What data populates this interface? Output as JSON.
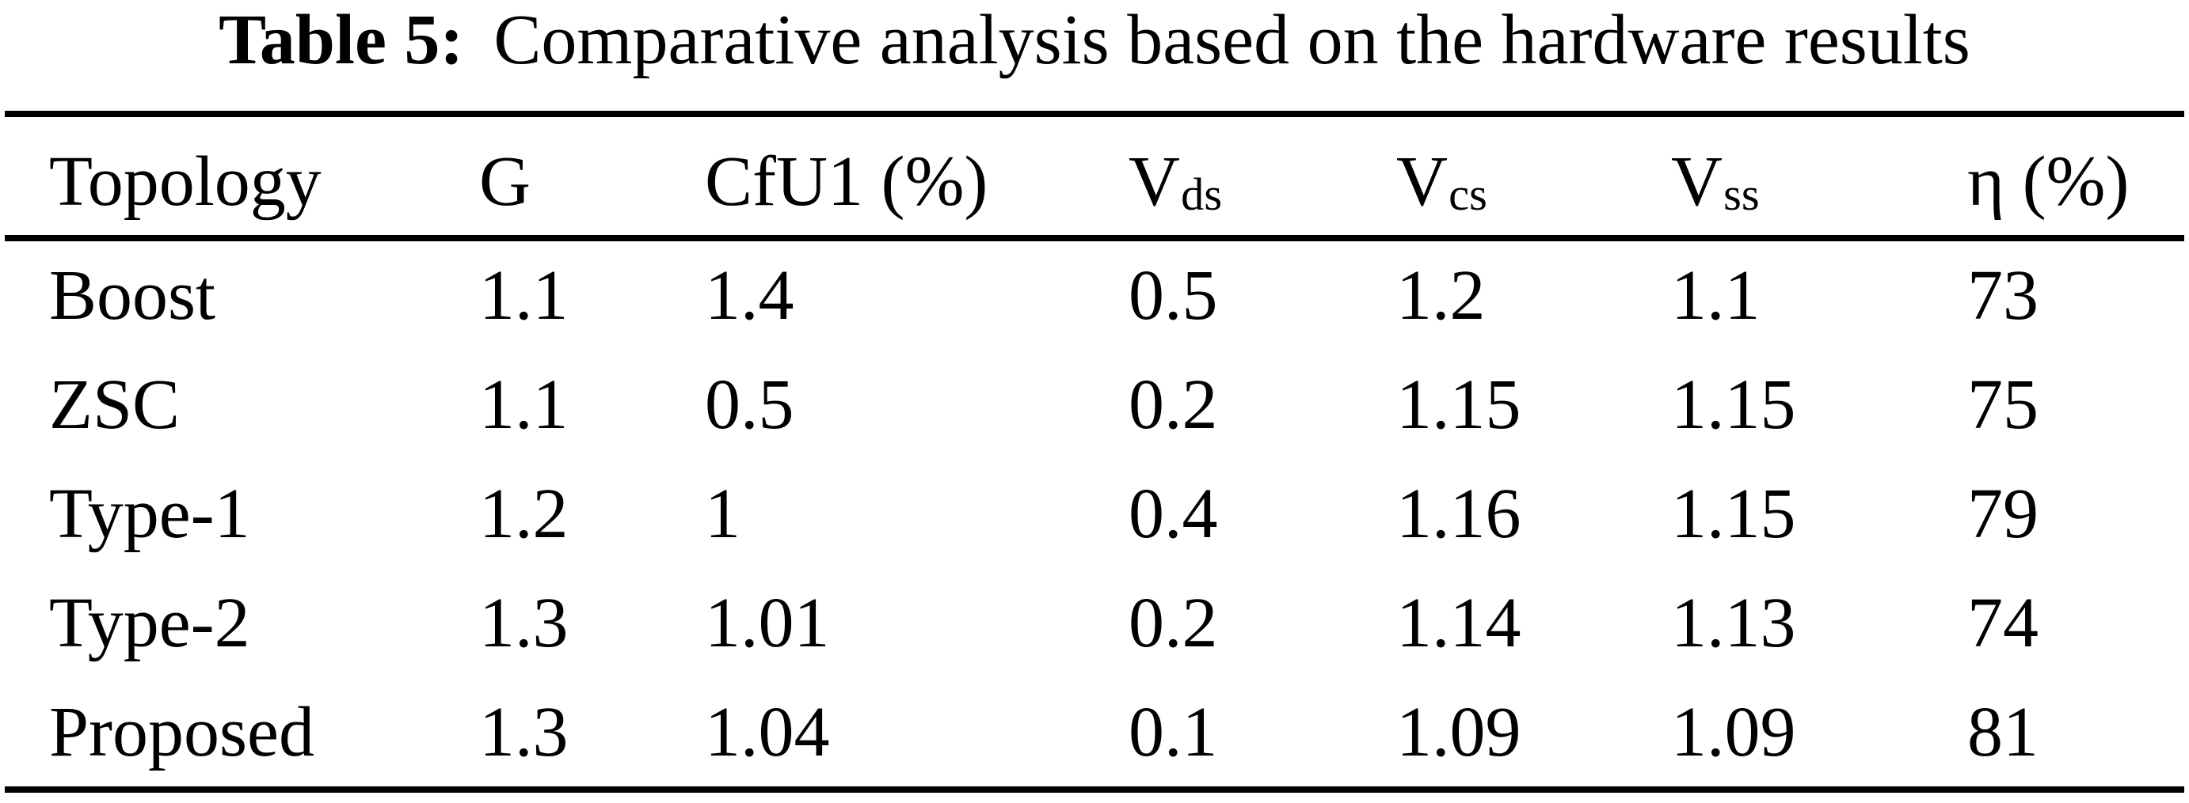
{
  "title": {
    "label": "Table 5:",
    "text": "Comparative analysis based on the hardware results"
  },
  "table": {
    "columns": [
      {
        "base": "Topology",
        "sub": ""
      },
      {
        "base": "G",
        "sub": ""
      },
      {
        "base": "CfU1 (%)",
        "sub": ""
      },
      {
        "base": "V",
        "sub": "ds"
      },
      {
        "base": "V",
        "sub": "cs"
      },
      {
        "base": "V",
        "sub": "ss"
      },
      {
        "base": "η (%)",
        "sub": ""
      }
    ],
    "rows": [
      [
        "Boost",
        "1.1",
        "1.4",
        "0.5",
        "1.2",
        "1.1",
        "73"
      ],
      [
        "ZSC",
        "1.1",
        "0.5",
        "0.2",
        "1.15",
        "1.15",
        "75"
      ],
      [
        "Type-1",
        "1.2",
        "1",
        "0.4",
        "1.16",
        "1.15",
        "79"
      ],
      [
        "Type-2",
        "1.3",
        "1.01",
        "0.2",
        "1.14",
        "1.13",
        "74"
      ],
      [
        "Proposed",
        "1.3",
        "1.04",
        "0.1",
        "1.09",
        "1.09",
        "81"
      ]
    ]
  },
  "chart_data": {
    "type": "table",
    "title": "Table 5: Comparative analysis based on the hardware results",
    "columns": [
      "Topology",
      "G",
      "CfU1 (%)",
      "Vds",
      "Vcs",
      "Vss",
      "η (%)"
    ],
    "rows": [
      [
        "Boost",
        1.1,
        1.4,
        0.5,
        1.2,
        1.1,
        73
      ],
      [
        "ZSC",
        1.1,
        0.5,
        0.2,
        1.15,
        1.15,
        75
      ],
      [
        "Type-1",
        1.2,
        1,
        0.4,
        1.16,
        1.15,
        79
      ],
      [
        "Type-2",
        1.3,
        1.01,
        0.2,
        1.14,
        1.13,
        74
      ],
      [
        "Proposed",
        1.3,
        1.04,
        0.1,
        1.09,
        1.09,
        81
      ]
    ]
  }
}
